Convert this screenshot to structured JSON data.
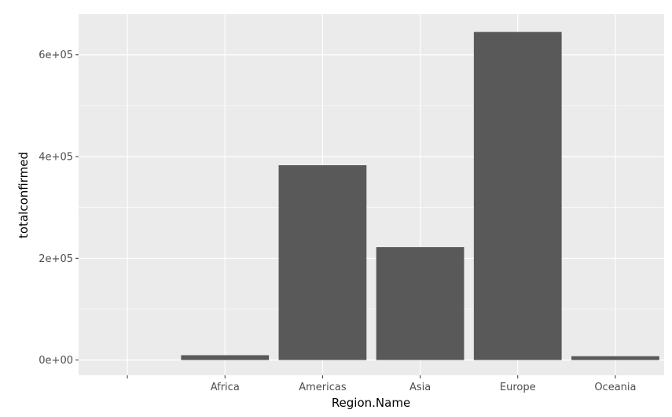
{
  "chart_data": {
    "type": "bar",
    "categories": [
      "",
      "Africa",
      "Americas",
      "Asia",
      "Europe",
      "Oceania"
    ],
    "values": [
      0,
      9500,
      383000,
      222000,
      645000,
      7500
    ],
    "title": "",
    "xlabel": "Region.Name",
    "ylabel": "totalconfirmed",
    "ylim": [
      -30000,
      680000
    ],
    "yticks": [
      0,
      200000,
      400000,
      600000
    ],
    "ytick_labels": [
      "0e+00",
      "2e+05",
      "4e+05",
      "6e+05"
    ],
    "grid": true,
    "legend": "none",
    "colors": {
      "panel_background": "#ebebeb",
      "grid_major": "#ffffff",
      "bar_fill": "#595959",
      "tick_text": "#4d4d4d",
      "tick_mark": "#333333"
    }
  }
}
